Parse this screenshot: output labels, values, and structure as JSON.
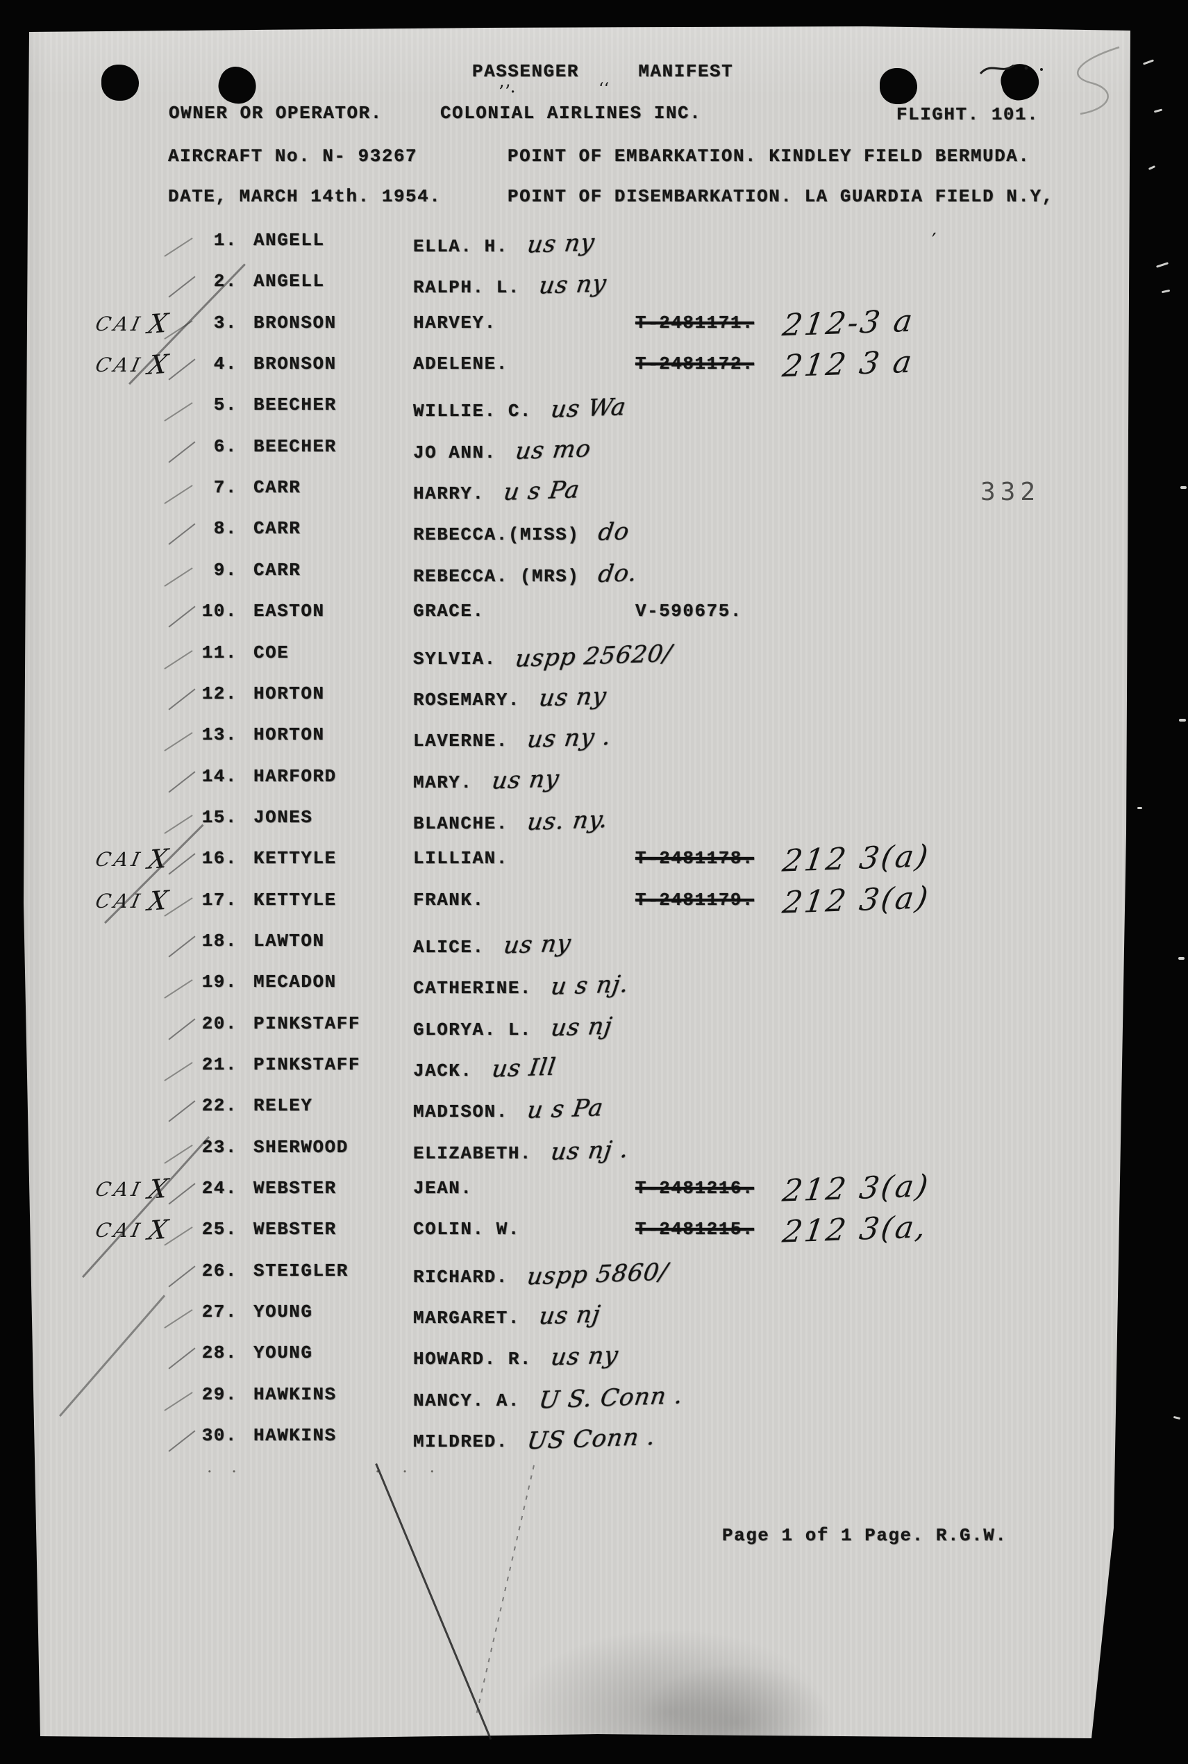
{
  "document": {
    "title": "PASSENGER     MANIFEST",
    "owner_label": "OWNER OR OPERATOR.",
    "owner_value": "COLONIAL AIRLINES INC.",
    "flight": "FLIGHT. 101.",
    "aircraft": "AIRCRAFT No. N- 93267",
    "embarkation": "POINT OF EMBARKATION. KINDLEY FIELD BERMUDA.",
    "date": "DATE, MARCH 14th. 1954.",
    "disembarkation": "POINT OF DISEMBARKATION. LA GUARDIA FIELD N.Y,",
    "stamp_number": "332",
    "footer": "Page 1 of 1 Page. R.G.W."
  },
  "passengers": [
    {
      "num": "1.",
      "surname": "ANGELL",
      "given": "ELLA. H.",
      "hw_mid": "us ny",
      "typed_doc": "",
      "doc_struck": false,
      "hw_right": "",
      "margin_note": "",
      "x_mark": ""
    },
    {
      "num": "2.",
      "surname": "ANGELL",
      "given": "RALPH. L.",
      "hw_mid": "us ny",
      "typed_doc": "",
      "doc_struck": false,
      "hw_right": "",
      "margin_note": "",
      "x_mark": ""
    },
    {
      "num": "3.",
      "surname": "BRONSON",
      "given": "HARVEY.",
      "hw_mid": "",
      "typed_doc": "T-2481171.",
      "doc_struck": true,
      "hw_right": "212-3 a",
      "margin_note": "CAI",
      "x_mark": "X"
    },
    {
      "num": "4.",
      "surname": "BRONSON",
      "given": "ADELENE.",
      "hw_mid": "",
      "typed_doc": "T-2481172.",
      "doc_struck": true,
      "hw_right": "212 3 a",
      "margin_note": "CAI",
      "x_mark": "X"
    },
    {
      "num": "5.",
      "surname": "BEECHER",
      "given": "WILLIE. C.",
      "hw_mid": "us Wa",
      "typed_doc": "",
      "doc_struck": false,
      "hw_right": "",
      "margin_note": "",
      "x_mark": ""
    },
    {
      "num": "6.",
      "surname": "BEECHER",
      "given": "JO ANN.",
      "hw_mid": "us mo",
      "typed_doc": "",
      "doc_struck": false,
      "hw_right": "",
      "margin_note": "",
      "x_mark": ""
    },
    {
      "num": "7.",
      "surname": "CARR",
      "given": "HARRY.",
      "hw_mid": "u s Pa",
      "typed_doc": "",
      "doc_struck": false,
      "hw_right": "",
      "margin_note": "",
      "x_mark": ""
    },
    {
      "num": "8.",
      "surname": "CARR",
      "given": "REBECCA.(MISS)",
      "hw_mid": "do",
      "typed_doc": "",
      "doc_struck": false,
      "hw_right": "",
      "margin_note": "",
      "x_mark": ""
    },
    {
      "num": "9.",
      "surname": "CARR",
      "given": "REBECCA. (MRS)",
      "hw_mid": "do.",
      "typed_doc": "",
      "doc_struck": false,
      "hw_right": "",
      "margin_note": "",
      "x_mark": ""
    },
    {
      "num": "10.",
      "surname": "EASTON",
      "given": "GRACE.",
      "hw_mid": "",
      "typed_doc": "V-590675.",
      "doc_struck": false,
      "hw_right": "",
      "margin_note": "",
      "x_mark": ""
    },
    {
      "num": "11.",
      "surname": "COE",
      "given": "SYLVIA.",
      "hw_mid": "uspp 25620/",
      "typed_doc": "",
      "doc_struck": false,
      "hw_right": "",
      "margin_note": "",
      "x_mark": ""
    },
    {
      "num": "12.",
      "surname": "HORTON",
      "given": "ROSEMARY.",
      "hw_mid": "us ny",
      "typed_doc": "",
      "doc_struck": false,
      "hw_right": "",
      "margin_note": "",
      "x_mark": ""
    },
    {
      "num": "13.",
      "surname": "HORTON",
      "given": "LAVERNE.",
      "hw_mid": "us ny .",
      "typed_doc": "",
      "doc_struck": false,
      "hw_right": "",
      "margin_note": "",
      "x_mark": ""
    },
    {
      "num": "14.",
      "surname": "HARFORD",
      "given": "MARY.",
      "hw_mid": "us ny",
      "typed_doc": "",
      "doc_struck": false,
      "hw_right": "",
      "margin_note": "",
      "x_mark": ""
    },
    {
      "num": "15.",
      "surname": "JONES",
      "given": "BLANCHE.",
      "hw_mid": "us. ny.",
      "typed_doc": "",
      "doc_struck": false,
      "hw_right": "",
      "margin_note": "",
      "x_mark": ""
    },
    {
      "num": "16.",
      "surname": "KETTYLE",
      "given": "LILLIAN.",
      "hw_mid": "",
      "typed_doc": "T-2481178.",
      "doc_struck": true,
      "hw_right": "212 3(a)",
      "margin_note": "CAI",
      "x_mark": "X"
    },
    {
      "num": "17.",
      "surname": "KETTYLE",
      "given": "FRANK.",
      "hw_mid": "",
      "typed_doc": "T-2481179.",
      "doc_struck": true,
      "hw_right": "212 3(a)",
      "margin_note": "CAI",
      "x_mark": "X"
    },
    {
      "num": "18.",
      "surname": "LAWTON",
      "given": "ALICE.",
      "hw_mid": "us ny",
      "typed_doc": "",
      "doc_struck": false,
      "hw_right": "",
      "margin_note": "",
      "x_mark": ""
    },
    {
      "num": "19.",
      "surname": "MECADON",
      "given": "CATHERINE.",
      "hw_mid": "u s nj.",
      "typed_doc": "",
      "doc_struck": false,
      "hw_right": "",
      "margin_note": "",
      "x_mark": ""
    },
    {
      "num": "20.",
      "surname": "PINKSTAFF",
      "given": "GLORYA. L.",
      "hw_mid": "us nj",
      "typed_doc": "",
      "doc_struck": false,
      "hw_right": "",
      "margin_note": "",
      "x_mark": ""
    },
    {
      "num": "21.",
      "surname": "PINKSTAFF",
      "given": "JACK.",
      "hw_mid": "us Ill",
      "typed_doc": "",
      "doc_struck": false,
      "hw_right": "",
      "margin_note": "",
      "x_mark": ""
    },
    {
      "num": "22.",
      "surname": "RELEY",
      "given": "MADISON.",
      "hw_mid": "u s Pa",
      "typed_doc": "",
      "doc_struck": false,
      "hw_right": "",
      "margin_note": "",
      "x_mark": ""
    },
    {
      "num": "23.",
      "surname": "SHERWOOD",
      "given": "ELIZABETH.",
      "hw_mid": "us nj .",
      "typed_doc": "",
      "doc_struck": false,
      "hw_right": "",
      "margin_note": "",
      "x_mark": ""
    },
    {
      "num": "24.",
      "surname": "WEBSTER",
      "given": "JEAN.",
      "hw_mid": "",
      "typed_doc": "T-2481216.",
      "doc_struck": true,
      "hw_right": "212 3(a)",
      "margin_note": "CAI",
      "x_mark": "X"
    },
    {
      "num": "25.",
      "surname": "WEBSTER",
      "given": "COLIN. W.",
      "hw_mid": "",
      "typed_doc": "T-2481215.",
      "doc_struck": true,
      "hw_right": "212 3(a,",
      "margin_note": "CAI",
      "x_mark": "X"
    },
    {
      "num": "26.",
      "surname": "STEIGLER",
      "given": "RICHARD.",
      "hw_mid": "uspp 5860/",
      "typed_doc": "",
      "doc_struck": false,
      "hw_right": "",
      "margin_note": "",
      "x_mark": ""
    },
    {
      "num": "27.",
      "surname": "YOUNG",
      "given": "MARGARET.",
      "hw_mid": "us nj",
      "typed_doc": "",
      "doc_struck": false,
      "hw_right": "",
      "margin_note": "",
      "x_mark": ""
    },
    {
      "num": "28.",
      "surname": "YOUNG",
      "given": "HOWARD. R.",
      "hw_mid": "us ny",
      "typed_doc": "",
      "doc_struck": false,
      "hw_right": "",
      "margin_note": "",
      "x_mark": ""
    },
    {
      "num": "29.",
      "surname": "HAWKINS",
      "given": "NANCY. A.",
      "hw_mid": "U S. Conn .",
      "typed_doc": "",
      "doc_struck": false,
      "hw_right": "",
      "margin_note": "",
      "x_mark": ""
    },
    {
      "num": "30.",
      "surname": "HAWKINS",
      "given": "MILDRED.",
      "hw_mid": "US Conn .",
      "typed_doc": "",
      "doc_struck": false,
      "hw_right": "",
      "margin_note": "",
      "x_mark": ""
    }
  ]
}
